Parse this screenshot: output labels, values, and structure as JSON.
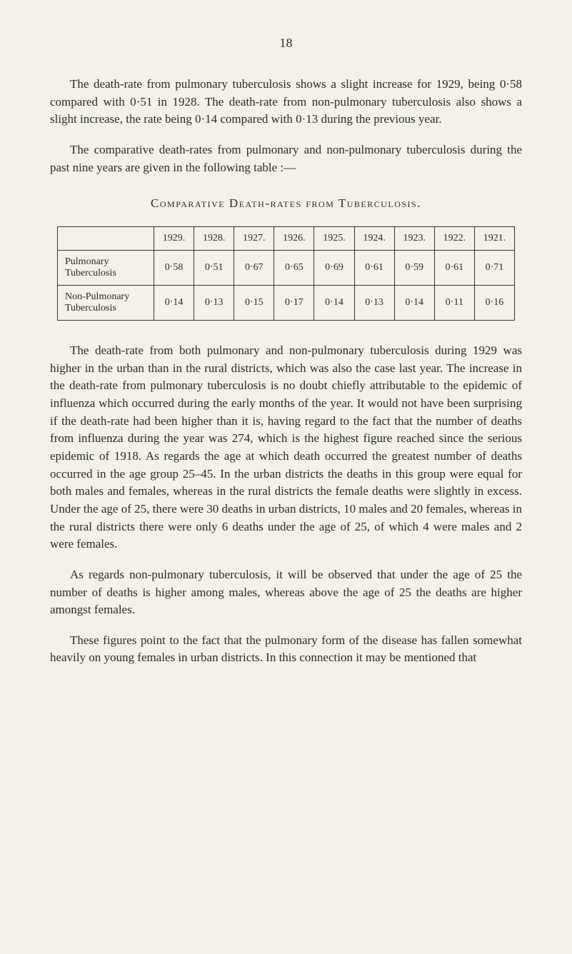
{
  "pageNumber": "18",
  "paragraph1": "The death-rate from pulmonary tuberculosis shows a slight increase for 1929, being 0·58 compared with 0·51 in 1928. The death-rate from non-pulmonary tuberculosis also shows a slight increase, the rate being 0·14 compared with 0·13 during the previous year.",
  "paragraph2": "The comparative death-rates from pulmonary and non-pulmonary tuberculosis during the past nine years are given in the following table :—",
  "sectionTitle": "Comparative Death-rates from Tuberculosis.",
  "table": {
    "years": [
      "1929.",
      "1928.",
      "1927.",
      "1926.",
      "1925.",
      "1924.",
      "1923.",
      "1922.",
      "1921."
    ],
    "rows": [
      {
        "label": "Pulmonary Tuberculosis",
        "values": [
          "0·58",
          "0·51",
          "0·67",
          "0·65",
          "0·69",
          "0·61",
          "0·59",
          "0·61",
          "0·71"
        ]
      },
      {
        "label": "Non-Pulmonary Tuberculosis",
        "values": [
          "0·14",
          "0·13",
          "0·15",
          "0·17",
          "0·14",
          "0·13",
          "0·14",
          "0·11",
          "0·16"
        ]
      }
    ]
  },
  "paragraph3": "The death-rate from both pulmonary and non-pulmonary tuberculosis during 1929 was higher in the urban than in the rural districts, which was also the case last year. The increase in the death-rate from pulmonary tuberculosis is no doubt chiefly attributable to the epidemic of influenza which occurred during the early months of the year. It would not have been surprising if the death-rate had been higher than it is, having regard to the fact that the number of deaths from influenza during the year was 274, which is the highest figure reached since the serious epidemic of 1918. As regards the age at which death occurred the greatest number of deaths occurred in the age group 25–45. In the urban districts the deaths in this group were equal for both males and females, whereas in the rural districts the female deaths were slightly in excess. Under the age of 25, there were 30 deaths in urban districts, 10 males and 20 females, whereas in the rural districts there were only 6 deaths under the age of 25, of which 4 were males and 2 were females.",
  "paragraph4": "As regards non-pulmonary tuberculosis, it will be observed that under the age of 25 the number of deaths is higher among males, whereas above the age of 25 the deaths are higher amongst females.",
  "paragraph5": "These figures point to the fact that the pulmonary form of the disease has fallen somewhat heavily on young females in urban districts. In this connection it may be mentioned that"
}
